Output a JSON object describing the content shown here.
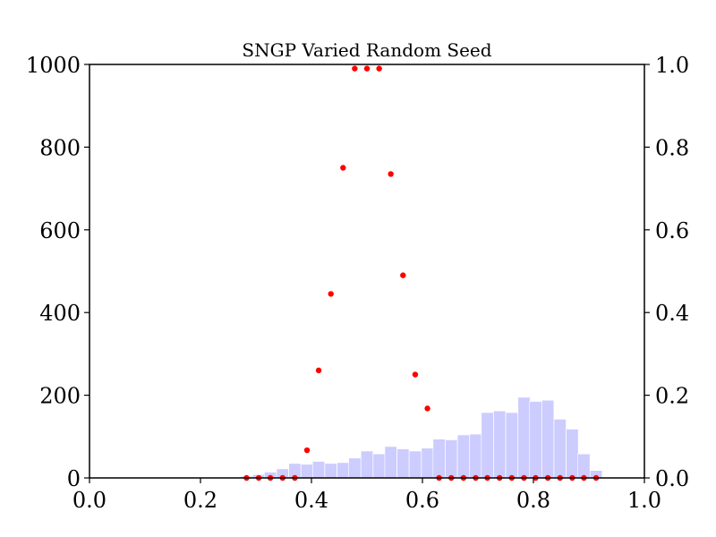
{
  "chart_data": {
    "type": "bar",
    "title": "SNGP Varied Random Seed",
    "xlabel": "",
    "ylabel": "",
    "xlim": [
      0.0,
      1.0
    ],
    "ylim": [
      0,
      1000
    ],
    "y2lim": [
      0.0,
      1.0
    ],
    "grid": false,
    "x_ticks": [
      "0.0",
      "0.2",
      "0.4",
      "0.6",
      "0.8",
      "1.0"
    ],
    "y_ticks": [
      "0",
      "200",
      "400",
      "600",
      "800",
      "1000"
    ],
    "y2_ticks": [
      "0.0",
      "0.2",
      "0.4",
      "0.6",
      "0.8",
      "1.0"
    ],
    "histogram": {
      "color": "#ccccff",
      "bin_width": 0.0217,
      "bins": [
        {
          "x": 0.283,
          "count": 4
        },
        {
          "x": 0.305,
          "count": 8
        },
        {
          "x": 0.326,
          "count": 14
        },
        {
          "x": 0.348,
          "count": 22
        },
        {
          "x": 0.37,
          "count": 35
        },
        {
          "x": 0.392,
          "count": 33
        },
        {
          "x": 0.413,
          "count": 40
        },
        {
          "x": 0.435,
          "count": 35
        },
        {
          "x": 0.457,
          "count": 37
        },
        {
          "x": 0.478,
          "count": 48
        },
        {
          "x": 0.5,
          "count": 65
        },
        {
          "x": 0.522,
          "count": 58
        },
        {
          "x": 0.543,
          "count": 76
        },
        {
          "x": 0.565,
          "count": 70
        },
        {
          "x": 0.587,
          "count": 65
        },
        {
          "x": 0.609,
          "count": 72
        },
        {
          "x": 0.63,
          "count": 94
        },
        {
          "x": 0.652,
          "count": 92
        },
        {
          "x": 0.674,
          "count": 104
        },
        {
          "x": 0.696,
          "count": 106
        },
        {
          "x": 0.717,
          "count": 158
        },
        {
          "x": 0.739,
          "count": 162
        },
        {
          "x": 0.761,
          "count": 158
        },
        {
          "x": 0.783,
          "count": 195
        },
        {
          "x": 0.804,
          "count": 185
        },
        {
          "x": 0.826,
          "count": 188
        },
        {
          "x": 0.848,
          "count": 142
        },
        {
          "x": 0.87,
          "count": 118
        },
        {
          "x": 0.891,
          "count": 58
        },
        {
          "x": 0.913,
          "count": 18
        }
      ]
    },
    "scatter": {
      "color": "#ff0000",
      "axis": "right",
      "points": [
        {
          "x": 0.283,
          "y": 0.0
        },
        {
          "x": 0.305,
          "y": 0.0
        },
        {
          "x": 0.326,
          "y": 0.0
        },
        {
          "x": 0.348,
          "y": 0.0
        },
        {
          "x": 0.37,
          "y": 0.0
        },
        {
          "x": 0.392,
          "y": 0.067
        },
        {
          "x": 0.413,
          "y": 0.26
        },
        {
          "x": 0.435,
          "y": 0.445
        },
        {
          "x": 0.457,
          "y": 0.75
        },
        {
          "x": 0.478,
          "y": 0.99
        },
        {
          "x": 0.5,
          "y": 0.99
        },
        {
          "x": 0.522,
          "y": 0.99
        },
        {
          "x": 0.543,
          "y": 0.735
        },
        {
          "x": 0.565,
          "y": 0.49
        },
        {
          "x": 0.587,
          "y": 0.25
        },
        {
          "x": 0.609,
          "y": 0.168
        },
        {
          "x": 0.63,
          "y": 0.0
        },
        {
          "x": 0.652,
          "y": 0.0
        },
        {
          "x": 0.674,
          "y": 0.0
        },
        {
          "x": 0.696,
          "y": 0.0
        },
        {
          "x": 0.717,
          "y": 0.0
        },
        {
          "x": 0.739,
          "y": 0.0
        },
        {
          "x": 0.761,
          "y": 0.0
        },
        {
          "x": 0.783,
          "y": 0.0
        },
        {
          "x": 0.804,
          "y": 0.0
        },
        {
          "x": 0.826,
          "y": 0.0
        },
        {
          "x": 0.848,
          "y": 0.0
        },
        {
          "x": 0.87,
          "y": 0.0
        },
        {
          "x": 0.891,
          "y": 0.0
        },
        {
          "x": 0.913,
          "y": 0.0
        }
      ]
    }
  }
}
